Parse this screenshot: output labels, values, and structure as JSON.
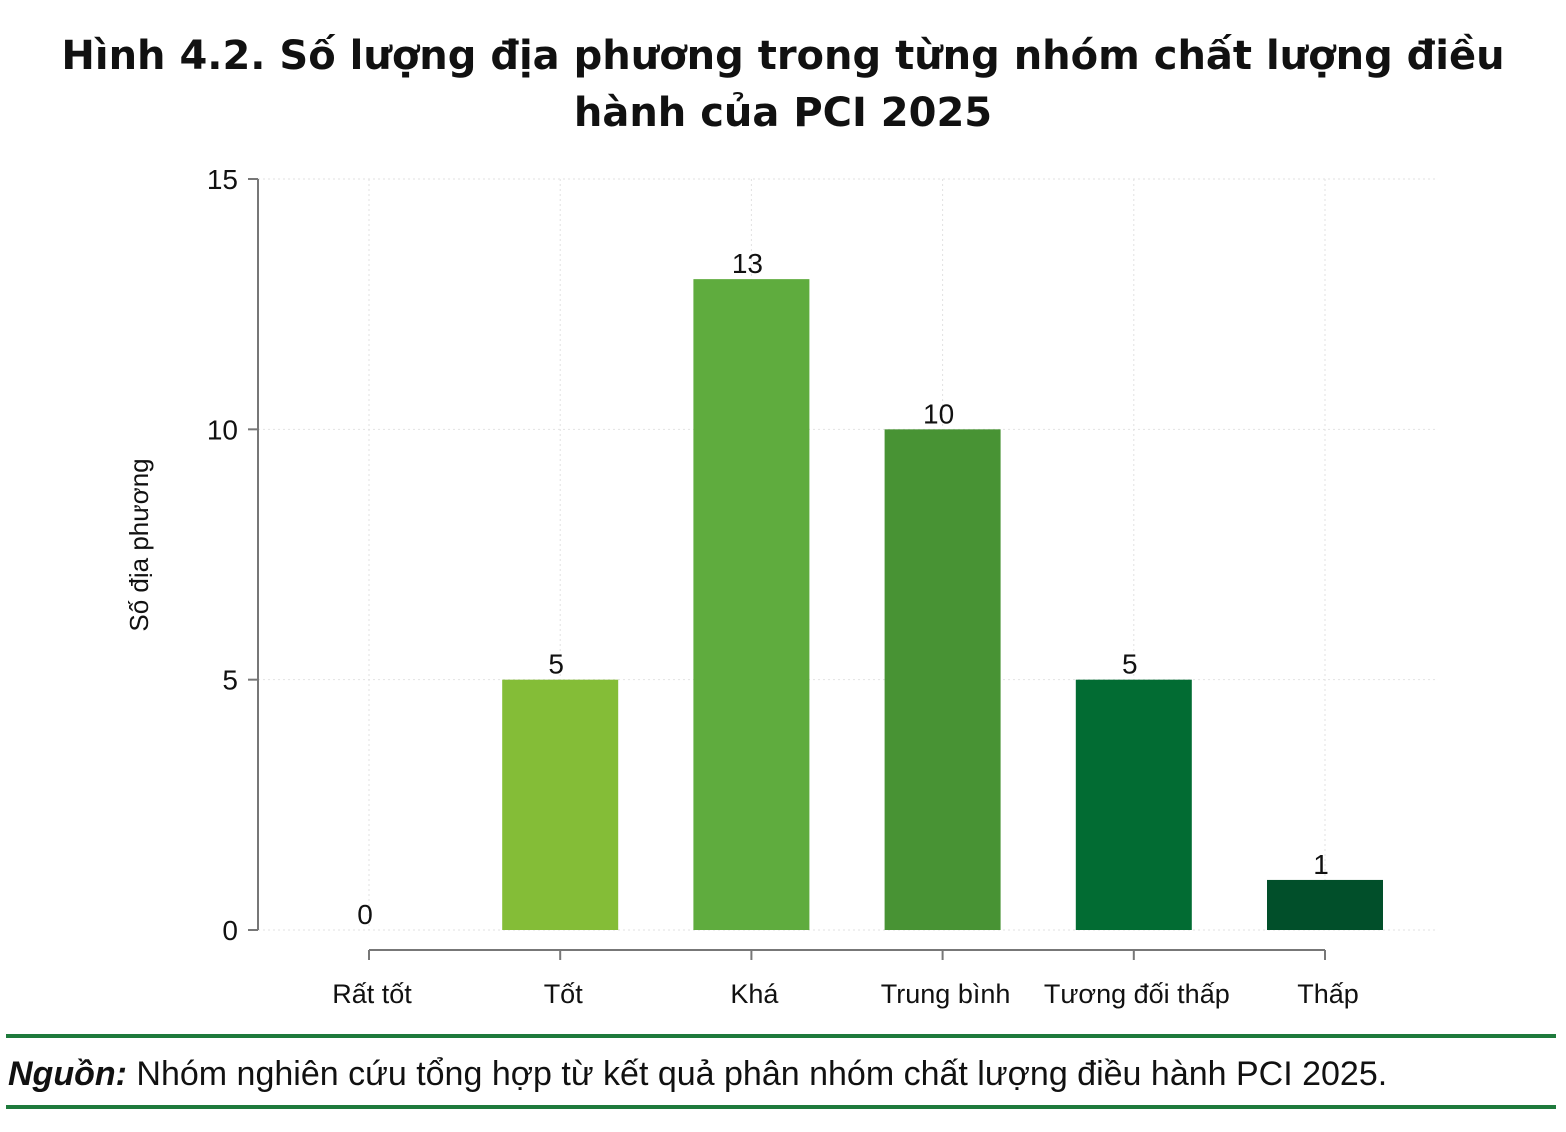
{
  "figure": {
    "title": "Hình 4.2. Số lượng địa phương trong từng nhóm chất lượng điều hành của PCI 2025"
  },
  "chart_data": {
    "type": "bar",
    "title": "Hình 4.2. Số lượng địa phương trong từng nhóm chất lượng điều hành của PCI 2025",
    "xlabel": "",
    "ylabel": "Số địa phương",
    "categories": [
      "Rất tốt",
      "Tốt",
      "Khá",
      "Trung bình",
      "Tương đối thấp",
      "Thấp"
    ],
    "values": [
      0,
      5,
      13,
      10,
      5,
      1
    ],
    "data_labels": [
      "0",
      "5",
      "13",
      "10",
      "5",
      "1"
    ],
    "bar_colors": [
      "#8dc63f",
      "#84bd37",
      "#5fac3e",
      "#489334",
      "#026c33",
      "#014f2a"
    ],
    "ylim": [
      0,
      15
    ],
    "yticks": [
      0,
      5,
      10,
      15
    ],
    "ytick_labels": [
      "0",
      "5",
      "10",
      "15"
    ],
    "grid": true,
    "legend": "none"
  },
  "source": {
    "label": "Nguồn:",
    "text": " Nhóm nghiên cứu tổng hợp từ kết quả phân nhóm chất lượng điều hành PCI 2025."
  },
  "colors": {
    "rule": "#1e7a3c",
    "axis": "#777777",
    "grid": "#e2e2e2",
    "text": "#111111"
  }
}
